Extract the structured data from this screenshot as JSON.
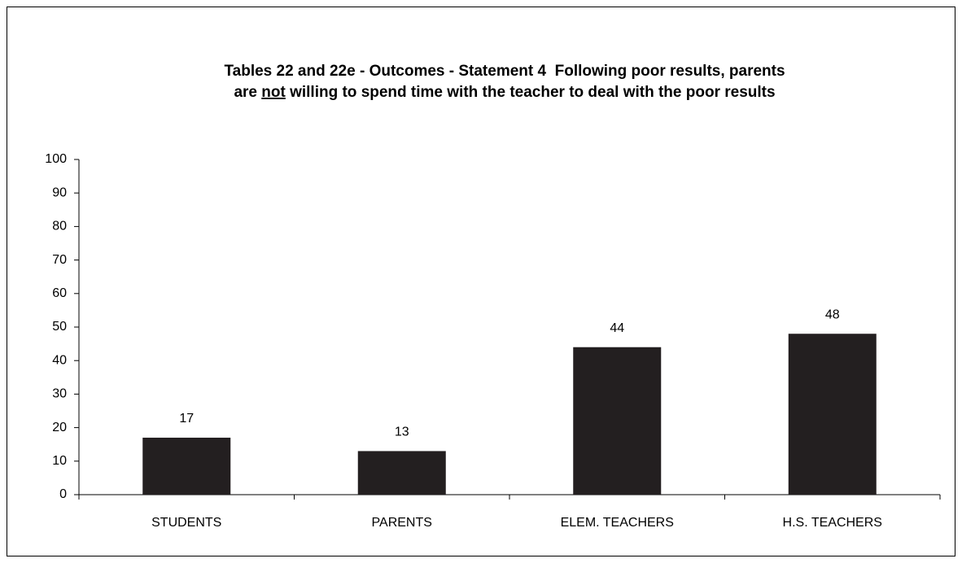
{
  "chart_data": {
    "type": "bar",
    "title": [
      "Tables 22 and 22e - Outcomes - Statement 4  Following poor results, parents",
      "are",
      "not",
      "willing to spend time with the teacher to deal with the poor results"
    ],
    "categories": [
      "STUDENTS",
      "PARENTS",
      "ELEM. TEACHERS",
      "H.S. TEACHERS"
    ],
    "values": [
      17,
      13,
      44,
      48
    ],
    "color": "#231f20",
    "ylim": [
      0,
      100
    ],
    "yticks": [
      0,
      10,
      20,
      30,
      40,
      50,
      60,
      70,
      80,
      90,
      100
    ],
    "grid": false
  }
}
